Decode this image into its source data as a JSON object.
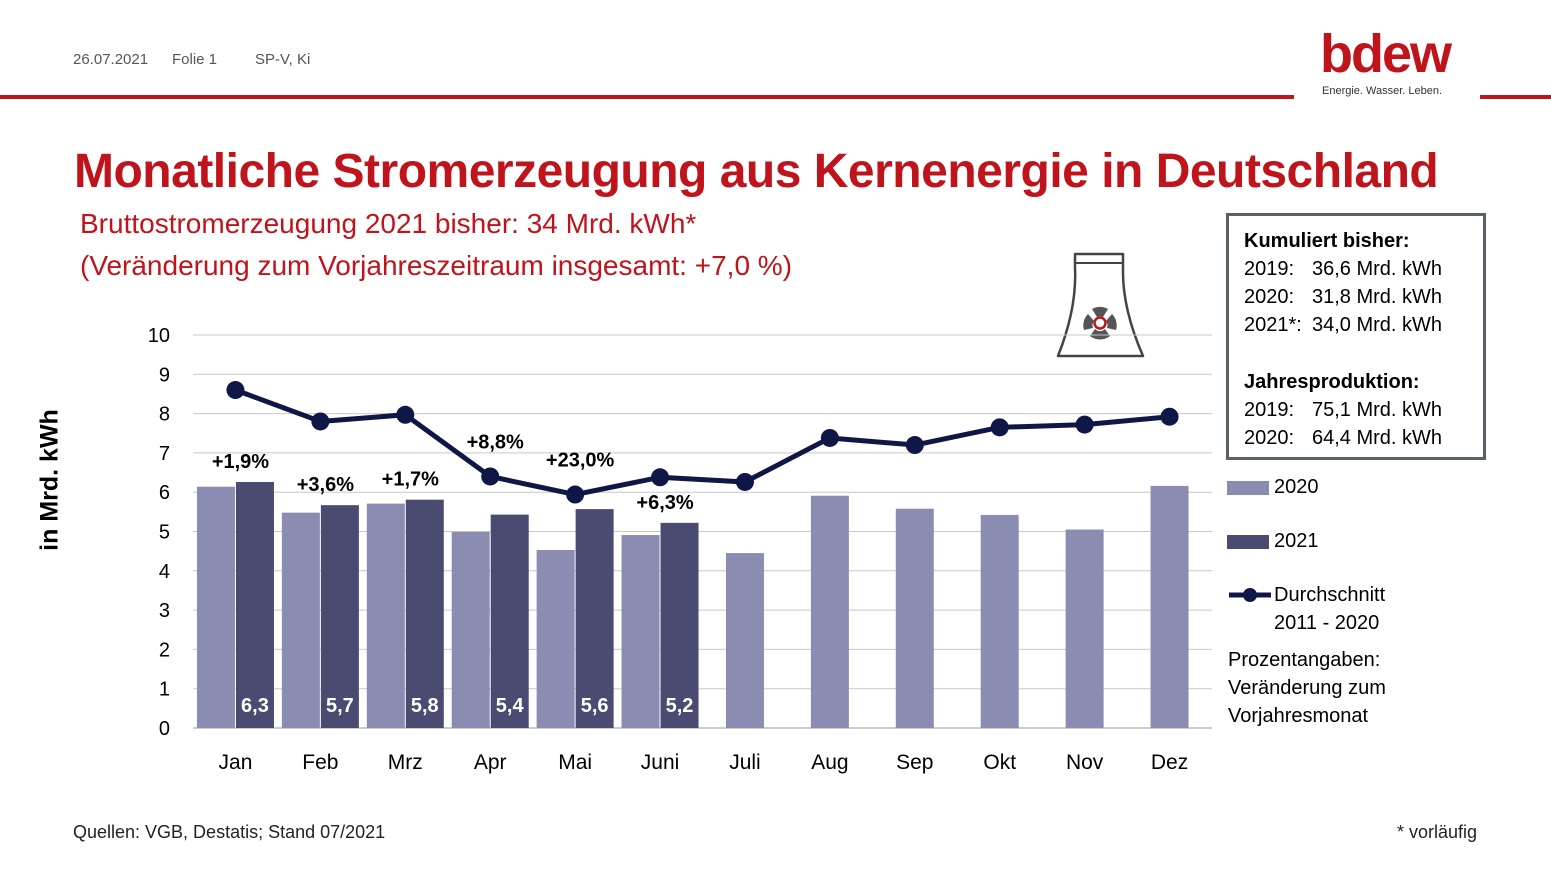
{
  "header": {
    "date": "26.07.2021",
    "slide": "Folie 1",
    "author": "SP-V, Ki"
  },
  "logo": {
    "word": "bdew",
    "tagline": "Energie. Wasser. Leben."
  },
  "title": "Monatliche Stromerzeugung aus Kernenergie in Deutschland",
  "subtitle_1": "Bruttostromerzeugung 2021 bisher: 34 Mrd. kWh*",
  "subtitle_2": "(Veränderung zum Vorjahreszeitraum insgesamt: +7,0 %)",
  "icon": "nuclear-cooling-tower-icon",
  "summary": {
    "heading_cumulative": "Kumuliert bisher:",
    "cumulative": [
      {
        "label": "2019:",
        "value": "36,6 Mrd. kWh"
      },
      {
        "label": "2020:",
        "value": "31,8 Mrd. kWh"
      },
      {
        "label": "2021*:",
        "value": "34,0 Mrd. kWh"
      }
    ],
    "heading_annual": "Jahresproduktion:",
    "annual": [
      {
        "label": "2019:",
        "value": "75,1 Mrd. kWh"
      },
      {
        "label": "2020:",
        "value": "64,4 Mrd. kWh"
      }
    ]
  },
  "legend": {
    "s2020": "2020",
    "s2021": "2021",
    "avg_line1": "Durchschnitt",
    "avg_line2": "2011 - 2020"
  },
  "note": {
    "line1": "Prozentangaben:",
    "line2": "Veränderung zum",
    "line3": "Vorjahresmonat"
  },
  "footer": {
    "source": "Quellen: VGB, Destatis; Stand 07/2021",
    "footnote": "* vorläufig"
  },
  "colors": {
    "brand_red": "#c0141c",
    "bar_2020": "#8a8cb2",
    "bar_2021": "#4a4b70",
    "avg_line": "#0f1747",
    "grid": "#c8c8c8"
  },
  "chart_data": {
    "type": "bar",
    "ylabel": "in Mrd. kWh",
    "ylim": [
      0,
      10
    ],
    "yticks": [
      "0",
      "1",
      "2",
      "3",
      "4",
      "5",
      "6",
      "7",
      "8",
      "9",
      "10"
    ],
    "categories": [
      "Jan",
      "Feb",
      "Mrz",
      "Apr",
      "Mai",
      "Juni",
      "Juli",
      "Aug",
      "Sep",
      "Okt",
      "Nov",
      "Dez"
    ],
    "series": [
      {
        "name": "2020",
        "type": "bar",
        "values": [
          6.14,
          5.48,
          5.71,
          4.99,
          4.53,
          4.91,
          4.45,
          5.91,
          5.58,
          5.42,
          5.05,
          6.16
        ]
      },
      {
        "name": "2021",
        "type": "bar",
        "values": [
          6.26,
          5.67,
          5.81,
          5.43,
          5.57,
          5.22,
          null,
          null,
          null,
          null,
          null,
          null
        ],
        "value_labels": [
          "6,3",
          "5,7",
          "5,8",
          "5,4",
          "5,6",
          "5,2",
          null,
          null,
          null,
          null,
          null,
          null
        ]
      },
      {
        "name": "Durchschnitt 2011 - 2020",
        "type": "line",
        "values": [
          8.6,
          7.8,
          7.97,
          6.4,
          5.94,
          6.38,
          6.26,
          7.38,
          7.2,
          7.65,
          7.72,
          7.92
        ]
      }
    ],
    "change_labels": [
      "+1,9%",
      "+3,6%",
      "+1,7%",
      "+8,8%",
      "+23,0%",
      "+6,3%",
      null,
      null,
      null,
      null,
      null,
      null
    ],
    "grid": true,
    "legend": "right"
  }
}
